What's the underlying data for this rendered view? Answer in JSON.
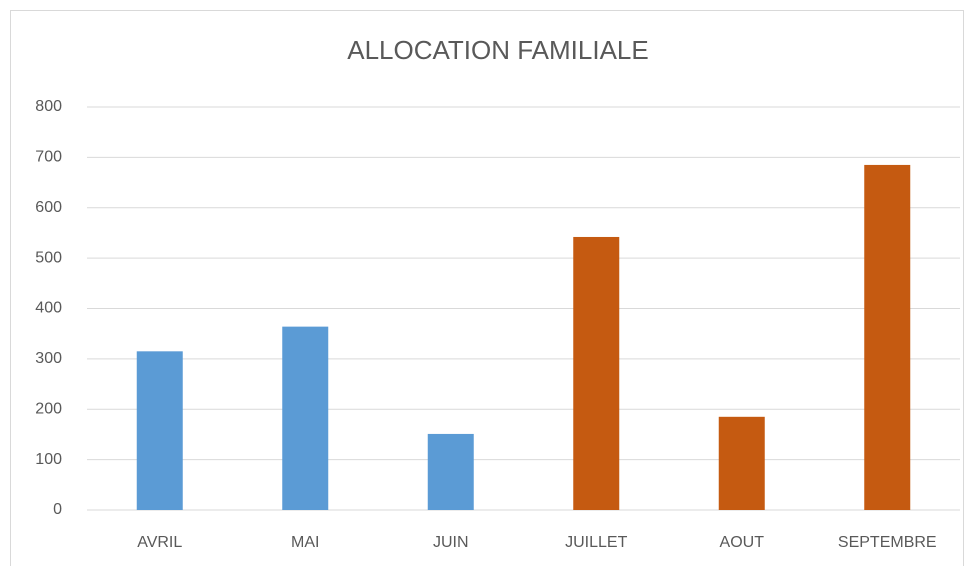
{
  "chart_data": {
    "type": "bar",
    "title": "ALLOCATION FAMILIALE",
    "categories": [
      "AVRIL",
      "MAI",
      "JUIN",
      "JUILLET",
      "AOUT",
      "SEPTEMBRE"
    ],
    "values": [
      315,
      364,
      151,
      542,
      185,
      685
    ],
    "colors": [
      "#5b9bd5",
      "#5b9bd5",
      "#5b9bd5",
      "#c55a11",
      "#c55a11",
      "#c55a11"
    ],
    "ylim": [
      0,
      800
    ],
    "yticks": [
      0,
      100,
      200,
      300,
      400,
      500,
      600,
      700,
      800
    ],
    "grid": true
  }
}
